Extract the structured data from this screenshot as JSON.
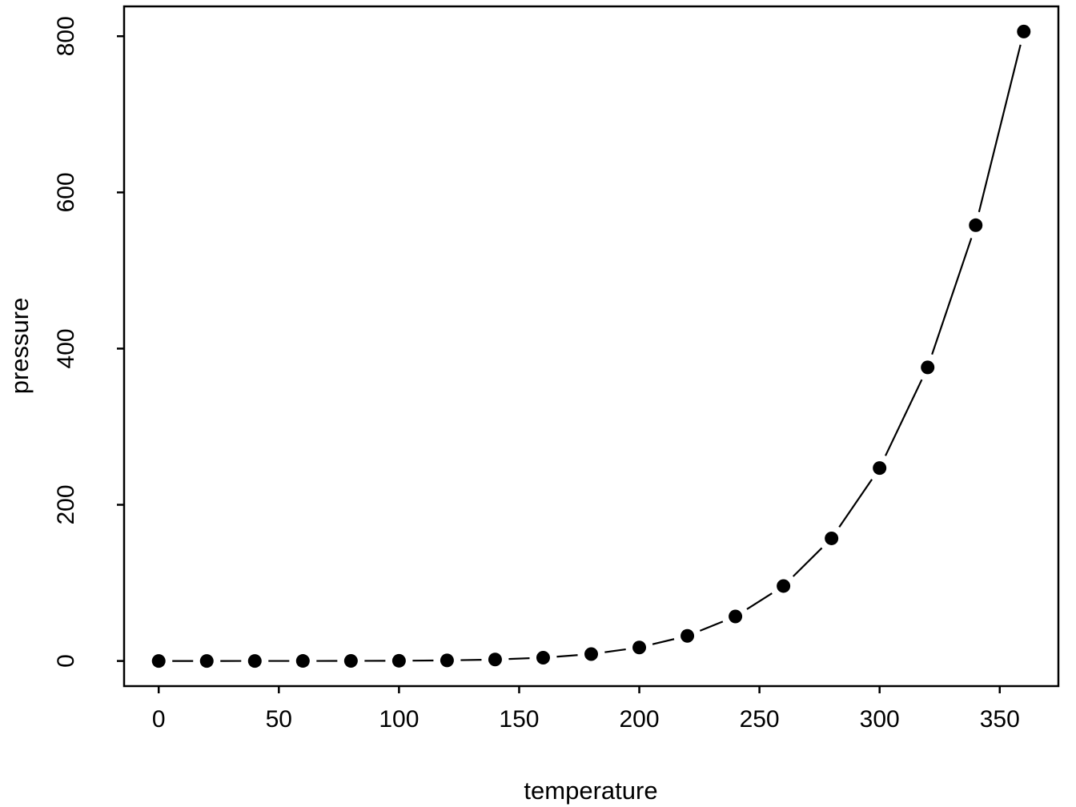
{
  "figure": {
    "background": "#ffffff"
  },
  "chart_data": {
    "type": "line",
    "style": "points connected by line segments with gaps (R base plot, type='b', pch=19)",
    "title": "",
    "xlabel": "temperature",
    "ylabel": "pressure",
    "x": [
      0,
      20,
      40,
      60,
      80,
      100,
      120,
      140,
      160,
      180,
      200,
      220,
      240,
      260,
      280,
      300,
      320,
      340,
      360
    ],
    "y": [
      0.0002,
      0.0012,
      0.006,
      0.03,
      0.09,
      0.27,
      0.75,
      1.85,
      4.2,
      8.8,
      17.3,
      32.1,
      57,
      96,
      157,
      247,
      376,
      558,
      806
    ],
    "x_ticks": [
      0,
      50,
      100,
      150,
      200,
      250,
      300,
      350
    ],
    "y_ticks": [
      0,
      200,
      400,
      600,
      800
    ],
    "xlim": [
      -14.4,
      374.4
    ],
    "ylim": [
      -32.2,
      838.2
    ],
    "grid": false,
    "legend": "none",
    "marker": "filled-circle",
    "marker_color": "#000000",
    "line_color": "#000000",
    "frame_color": "#000000",
    "background": "#ffffff"
  }
}
